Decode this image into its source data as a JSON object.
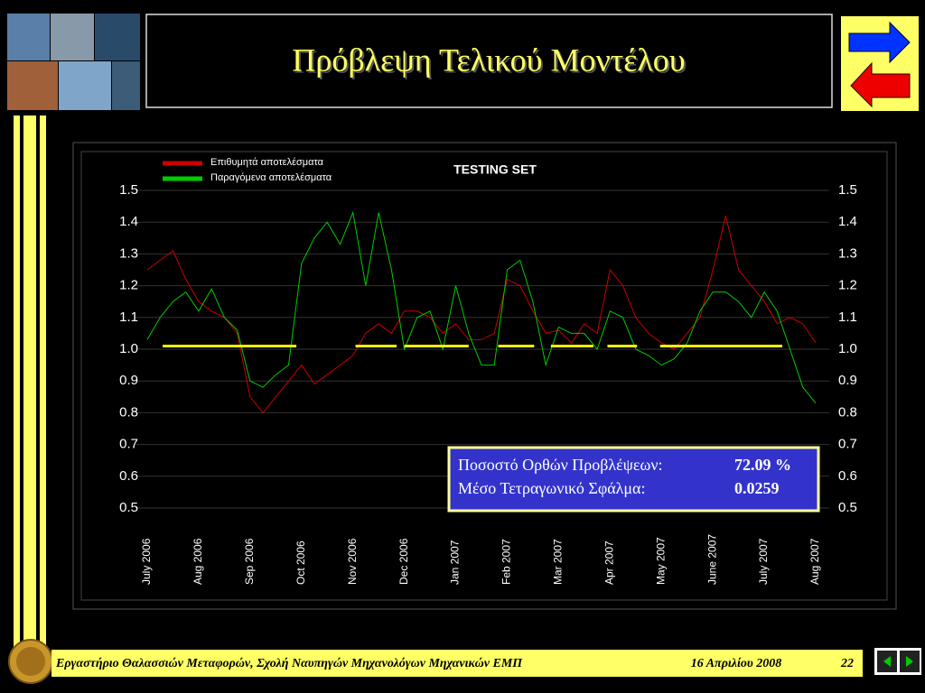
{
  "slide_title": "Πρόβλεψη Τελικού Μοντέλου",
  "footer": {
    "text": "Εργαστήριο Θαλασσιών Μεταφορών, Σχολή Ναυπηγών Μηχανολόγων Μηχανικών ΕΜΠ",
    "date": "16 Απριλίου 2008",
    "page": "22"
  },
  "chart_data": {
    "type": "line",
    "title": "TESTING SET",
    "categories": [
      "July 2006",
      null,
      null,
      null,
      "Aug 2006",
      null,
      null,
      null,
      "Sep 2006",
      null,
      null,
      null,
      "Oct 2006",
      null,
      null,
      null,
      "Nov 2006",
      null,
      null,
      null,
      "Dec 2006",
      null,
      null,
      null,
      "Jan 2007",
      null,
      null,
      null,
      "Feb 2007",
      null,
      null,
      null,
      "Mar 2007",
      null,
      null,
      null,
      "Apr 2007",
      null,
      null,
      null,
      "May 2007",
      null,
      null,
      null,
      "June 2007",
      null,
      null,
      null,
      "July 2007",
      null,
      null,
      null,
      "Aug 2007"
    ],
    "series": [
      {
        "name": "Επιθυμητά αποτελέσματα",
        "color": "#cc0000",
        "values": [
          1.25,
          1.28,
          1.31,
          1.22,
          1.15,
          1.12,
          1.1,
          1.05,
          0.85,
          0.8,
          0.85,
          0.9,
          0.95,
          0.89,
          0.92,
          0.95,
          0.98,
          1.05,
          1.08,
          1.05,
          1.12,
          1.12,
          1.1,
          1.05,
          1.08,
          1.03,
          1.03,
          1.05,
          1.22,
          1.2,
          1.12,
          1.05,
          1.06,
          1.02,
          1.08,
          1.05,
          1.25,
          1.2,
          1.1,
          1.05,
          1.02,
          1.0,
          1.05,
          1.1,
          1.25,
          1.42,
          1.25,
          1.2,
          1.15,
          1.08,
          1.1,
          1.08,
          1.02
        ]
      },
      {
        "name": "Παραγόμενα αποτελέσματα",
        "color": "#00cc00",
        "values": [
          1.03,
          1.1,
          1.15,
          1.18,
          1.12,
          1.19,
          1.1,
          1.06,
          0.9,
          0.88,
          0.92,
          0.95,
          1.27,
          1.35,
          1.4,
          1.33,
          1.43,
          1.2,
          1.43,
          1.25,
          1.0,
          1.1,
          1.12,
          1.0,
          1.2,
          1.05,
          0.95,
          0.95,
          1.25,
          1.28,
          1.15,
          0.95,
          1.07,
          1.05,
          1.05,
          1.0,
          1.12,
          1.1,
          1.0,
          0.98,
          0.95,
          0.97,
          1.02,
          1.12,
          1.18,
          1.18,
          1.15,
          1.1,
          1.18,
          1.12,
          1.0,
          0.88,
          0.83
        ]
      }
    ],
    "hit_color": "#ffff00",
    "hit_level": 1.01,
    "hit_spans": [
      [
        1.2,
        11.6
      ],
      [
        16.2,
        19.4
      ],
      [
        20,
        25
      ],
      [
        27.3,
        30.1
      ],
      [
        31.4,
        34.7
      ],
      [
        35.8,
        38.1
      ],
      [
        39.9,
        49.4
      ]
    ],
    "ylim": [
      0.5,
      1.5
    ],
    "yticks": [
      0.5,
      0.6,
      0.7,
      0.8,
      0.9,
      {
        "value": 1.0,
        "label": "1.0"
      },
      1.1,
      1.2,
      1.3,
      1.4,
      1.5
    ],
    "y2lim": [
      0.5,
      1.5
    ],
    "y2ticks": [
      0.5,
      0.6,
      0.7,
      0.8,
      0.9,
      {
        "value": 1.0,
        "label": "1.0"
      },
      1.1,
      1.2,
      1.3,
      1.4,
      1.5
    ],
    "grid": true,
    "stats": [
      {
        "label": "Ποσοστό Ορθών Προβλέψεων:",
        "value": "72.09 %"
      },
      {
        "label": "Μέσο Τετραγωνικό Σφάλμα:",
        "value": "0.0259"
      }
    ]
  }
}
